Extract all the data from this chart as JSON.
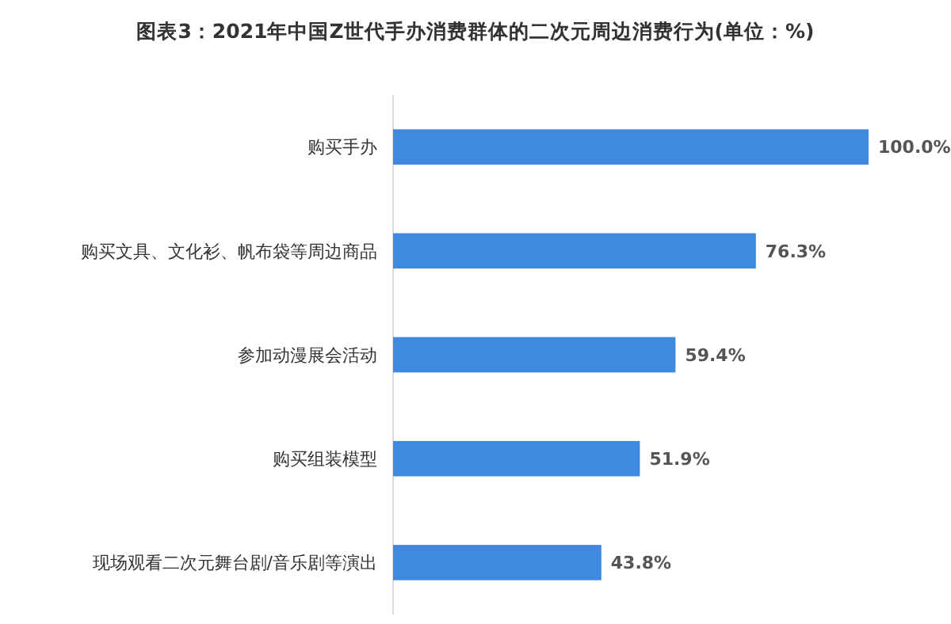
{
  "chart_data": {
    "type": "bar",
    "orientation": "horizontal",
    "title": "图表3：2021年中国Z世代手办消费群体的二次元周边消费行为(单位：%)",
    "categories": [
      "购买手办",
      "购买文具、文化衫、帆布袋等周边商品",
      "参加动漫展会活动",
      "购买组装模型",
      "现场观看二次元舞台剧/音乐剧等演出"
    ],
    "values": [
      100.0,
      76.3,
      59.4,
      51.9,
      43.8
    ],
    "value_labels": [
      "100.0%",
      "76.3%",
      "59.4%",
      "51.9%",
      "43.8%"
    ],
    "color": "#3f8ae0"
  }
}
